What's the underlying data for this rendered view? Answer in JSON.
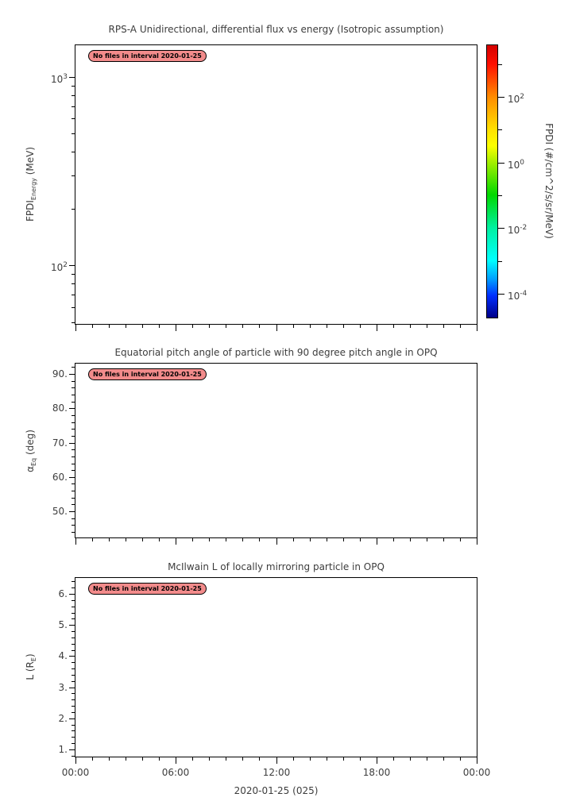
{
  "figure": {
    "background": "#ffffff",
    "text_color": "#3d3d3d",
    "axis_color": "#000000",
    "badge_style": {
      "background": "#f28b8b",
      "border": "#000000",
      "text_color": "#000000"
    }
  },
  "x_axis": {
    "label": "2020-01-25 (025)",
    "lim": [
      0,
      24
    ],
    "minor_step": 1,
    "major_ticks": [
      {
        "value": 0,
        "label": "00:00"
      },
      {
        "value": 6,
        "label": "06:00"
      },
      {
        "value": 12,
        "label": "12:00"
      },
      {
        "value": 18,
        "label": "18:00"
      },
      {
        "value": 24,
        "label": "00:00"
      }
    ]
  },
  "chart_data": [
    {
      "type": "heatmap",
      "title": "RPS-A Unidirectional, differential flux vs energy (Isotropic assumption)",
      "ylabel": {
        "pre": "FPDI",
        "sub": "Energy",
        "post": " (MeV)"
      },
      "yscale": "log",
      "ylim": [
        49,
        1470
      ],
      "y_major_ticks": [
        {
          "value": 1000,
          "label": "10^3"
        },
        {
          "value": 100,
          "label": "10^2"
        }
      ],
      "annotation": "No files in interval 2020-01-25",
      "series": [],
      "colorbar": {
        "label": "FPDI (#/cm^2/s/sr/MeV)",
        "scale": "log",
        "exp_lim": [
          -4.73,
          3.57
        ],
        "major_ticks": [
          {
            "exp": 2,
            "label": "10^2"
          },
          {
            "exp": 0,
            "label": "10^0"
          },
          {
            "exp": -2,
            "label": "10^-2"
          },
          {
            "exp": -4,
            "label": "10^-4"
          }
        ],
        "minor_exps": [
          3,
          1,
          -1,
          -3
        ],
        "gradient": [
          {
            "pos": 0.0,
            "color": "#d40000"
          },
          {
            "pos": 0.07,
            "color": "#ff0f00"
          },
          {
            "pos": 0.19,
            "color": "#ff8c00"
          },
          {
            "pos": 0.31,
            "color": "#ffe100"
          },
          {
            "pos": 0.37,
            "color": "#fbff00"
          },
          {
            "pos": 0.43,
            "color": "#a4ef00"
          },
          {
            "pos": 0.55,
            "color": "#00d800"
          },
          {
            "pos": 0.67,
            "color": "#00f0a0"
          },
          {
            "pos": 0.79,
            "color": "#00ffff"
          },
          {
            "pos": 0.86,
            "color": "#009dff"
          },
          {
            "pos": 0.92,
            "color": "#002eff"
          },
          {
            "pos": 1.0,
            "color": "#000088"
          }
        ]
      }
    },
    {
      "type": "line",
      "title": "Equatorial pitch angle of particle with 90 degree pitch angle in OPQ",
      "ylabel": {
        "pre": "α",
        "sub": "Eq",
        "post": " (deg)"
      },
      "yscale": "linear",
      "ylim": [
        42.4,
        93
      ],
      "y_minor_step": 2,
      "y_major_ticks": [
        {
          "value": 90,
          "label": "90."
        },
        {
          "value": 80,
          "label": "80."
        },
        {
          "value": 70,
          "label": "70."
        },
        {
          "value": 60,
          "label": "60."
        },
        {
          "value": 50,
          "label": "50."
        }
      ],
      "annotation": "No files in interval 2020-01-25",
      "series": []
    },
    {
      "type": "line",
      "title": "McIlwain L of locally mirroring particle in OPQ",
      "ylabel": {
        "pre": "L (R",
        "sub": "E",
        "post": ")"
      },
      "yscale": "linear",
      "ylim": [
        0.77,
        6.51
      ],
      "y_minor_step": 0.2,
      "y_major_ticks": [
        {
          "value": 6,
          "label": "6."
        },
        {
          "value": 5,
          "label": "5."
        },
        {
          "value": 4,
          "label": "4."
        },
        {
          "value": 3,
          "label": "3."
        },
        {
          "value": 2,
          "label": "2."
        },
        {
          "value": 1,
          "label": "1."
        }
      ],
      "annotation": "No files in interval 2020-01-25",
      "series": []
    }
  ]
}
